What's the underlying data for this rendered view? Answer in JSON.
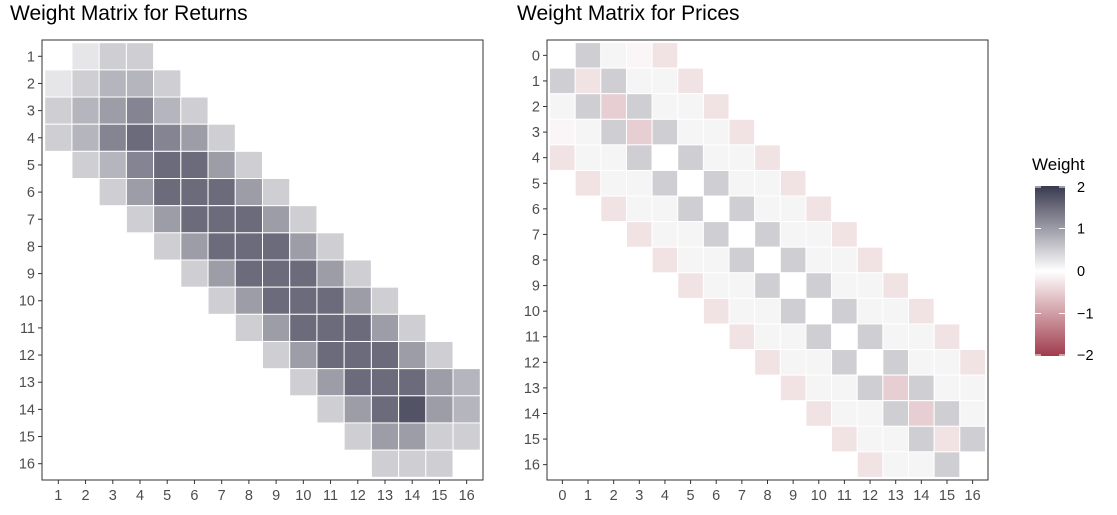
{
  "chart_data": [
    {
      "type": "heatmap",
      "title": "Weight Matrix for Returns",
      "xlabel": "",
      "ylabel": "",
      "x_categories": [
        "1",
        "2",
        "3",
        "4",
        "5",
        "6",
        "7",
        "8",
        "9",
        "10",
        "11",
        "12",
        "13",
        "14",
        "15",
        "16"
      ],
      "y_categories": [
        "1",
        "2",
        "3",
        "4",
        "5",
        "6",
        "7",
        "8",
        "9",
        "10",
        "11",
        "12",
        "13",
        "14",
        "15",
        "16"
      ],
      "values": [
        [
          null,
          0.25,
          0.5,
          0.5,
          null,
          null,
          null,
          null,
          null,
          null,
          null,
          null,
          null,
          null,
          null,
          null
        ],
        [
          0.25,
          0.5,
          0.75,
          0.75,
          0.5,
          null,
          null,
          null,
          null,
          null,
          null,
          null,
          null,
          null,
          null,
          null
        ],
        [
          0.5,
          0.75,
          1.0,
          1.25,
          0.75,
          0.5,
          null,
          null,
          null,
          null,
          null,
          null,
          null,
          null,
          null,
          null
        ],
        [
          0.5,
          0.75,
          1.25,
          1.5,
          1.25,
          1.0,
          0.5,
          null,
          null,
          null,
          null,
          null,
          null,
          null,
          null,
          null
        ],
        [
          null,
          0.5,
          0.75,
          1.25,
          1.5,
          1.5,
          1.0,
          0.5,
          null,
          null,
          null,
          null,
          null,
          null,
          null,
          null
        ],
        [
          null,
          null,
          0.5,
          1.0,
          1.5,
          1.5,
          1.5,
          1.0,
          0.5,
          null,
          null,
          null,
          null,
          null,
          null,
          null
        ],
        [
          null,
          null,
          null,
          0.5,
          1.0,
          1.5,
          1.5,
          1.5,
          1.0,
          0.5,
          null,
          null,
          null,
          null,
          null,
          null
        ],
        [
          null,
          null,
          null,
          null,
          0.5,
          1.0,
          1.5,
          1.5,
          1.5,
          1.0,
          0.5,
          null,
          null,
          null,
          null,
          null
        ],
        [
          null,
          null,
          null,
          null,
          null,
          0.5,
          1.0,
          1.5,
          1.5,
          1.5,
          1.0,
          0.5,
          null,
          null,
          null,
          null
        ],
        [
          null,
          null,
          null,
          null,
          null,
          null,
          0.5,
          1.0,
          1.5,
          1.5,
          1.5,
          1.0,
          0.5,
          null,
          null,
          null
        ],
        [
          null,
          null,
          null,
          null,
          null,
          null,
          null,
          0.5,
          1.0,
          1.5,
          1.5,
          1.5,
          1.0,
          0.5,
          null,
          null
        ],
        [
          null,
          null,
          null,
          null,
          null,
          null,
          null,
          null,
          0.5,
          1.0,
          1.5,
          1.5,
          1.5,
          1.0,
          0.5,
          null
        ],
        [
          null,
          null,
          null,
          null,
          null,
          null,
          null,
          null,
          null,
          0.5,
          1.0,
          1.5,
          1.5,
          1.5,
          1.0,
          0.75
        ],
        [
          null,
          null,
          null,
          null,
          null,
          null,
          null,
          null,
          null,
          null,
          0.5,
          1.0,
          1.5,
          1.75,
          1.0,
          0.75
        ],
        [
          null,
          null,
          null,
          null,
          null,
          null,
          null,
          null,
          null,
          null,
          null,
          0.5,
          1.0,
          1.0,
          0.5,
          0.5
        ],
        [
          null,
          null,
          null,
          null,
          null,
          null,
          null,
          null,
          null,
          null,
          null,
          null,
          0.5,
          0.5,
          0.5,
          null
        ]
      ]
    },
    {
      "type": "heatmap",
      "title": "Weight Matrix for Prices",
      "xlabel": "",
      "ylabel": "",
      "x_categories": [
        "0",
        "1",
        "2",
        "3",
        "4",
        "5",
        "6",
        "7",
        "8",
        "9",
        "10",
        "11",
        "12",
        "13",
        "14",
        "15",
        "16"
      ],
      "y_categories": [
        "0",
        "1",
        "2",
        "3",
        "4",
        "5",
        "6",
        "7",
        "8",
        "9",
        "10",
        "11",
        "12",
        "13",
        "14",
        "15",
        "16"
      ],
      "values": [
        [
          null,
          0.5,
          0.1,
          -0.1,
          -0.3,
          null,
          null,
          null,
          null,
          null,
          null,
          null,
          null,
          null,
          null,
          null,
          null
        ],
        [
          0.5,
          -0.3,
          0.5,
          0.1,
          0.1,
          -0.3,
          null,
          null,
          null,
          null,
          null,
          null,
          null,
          null,
          null,
          null,
          null
        ],
        [
          0.1,
          0.5,
          -0.5,
          0.5,
          0.1,
          0.1,
          -0.3,
          null,
          null,
          null,
          null,
          null,
          null,
          null,
          null,
          null,
          null
        ],
        [
          -0.1,
          0.1,
          0.5,
          -0.5,
          0.5,
          0.1,
          0.1,
          -0.3,
          null,
          null,
          null,
          null,
          null,
          null,
          null,
          null,
          null
        ],
        [
          -0.3,
          0.1,
          0.1,
          0.5,
          0,
          0.5,
          0.1,
          0.1,
          -0.3,
          null,
          null,
          null,
          null,
          null,
          null,
          null,
          null
        ],
        [
          null,
          -0.3,
          0.1,
          0.1,
          0.5,
          0,
          0.5,
          0.1,
          0.1,
          -0.3,
          null,
          null,
          null,
          null,
          null,
          null,
          null
        ],
        [
          null,
          null,
          -0.3,
          0.1,
          0.1,
          0.5,
          0,
          0.5,
          0.1,
          0.1,
          -0.3,
          null,
          null,
          null,
          null,
          null,
          null
        ],
        [
          null,
          null,
          null,
          -0.3,
          0.1,
          0.1,
          0.5,
          0,
          0.5,
          0.1,
          0.1,
          -0.3,
          null,
          null,
          null,
          null,
          null
        ],
        [
          null,
          null,
          null,
          null,
          -0.3,
          0.1,
          0.1,
          0.5,
          0,
          0.5,
          0.1,
          0.1,
          -0.3,
          null,
          null,
          null,
          null
        ],
        [
          null,
          null,
          null,
          null,
          null,
          -0.3,
          0.1,
          0.1,
          0.5,
          0,
          0.5,
          0.1,
          0.1,
          -0.3,
          null,
          null,
          null
        ],
        [
          null,
          null,
          null,
          null,
          null,
          null,
          -0.3,
          0.1,
          0.1,
          0.5,
          0,
          0.5,
          0.1,
          0.1,
          -0.3,
          null,
          null
        ],
        [
          null,
          null,
          null,
          null,
          null,
          null,
          null,
          -0.3,
          0.1,
          0.1,
          0.5,
          0,
          0.5,
          0.1,
          0.1,
          -0.3,
          null
        ],
        [
          null,
          null,
          null,
          null,
          null,
          null,
          null,
          null,
          -0.3,
          0.1,
          0.1,
          0.5,
          0,
          0.5,
          0.1,
          0.1,
          -0.3
        ],
        [
          null,
          null,
          null,
          null,
          null,
          null,
          null,
          null,
          null,
          -0.3,
          0.1,
          0.1,
          0.5,
          -0.5,
          0.5,
          0.1,
          0.1
        ],
        [
          null,
          null,
          null,
          null,
          null,
          null,
          null,
          null,
          null,
          null,
          -0.3,
          0.1,
          0.1,
          0.5,
          -0.5,
          0.5,
          0.1
        ],
        [
          null,
          null,
          null,
          null,
          null,
          null,
          null,
          null,
          null,
          null,
          null,
          -0.3,
          0.1,
          0.1,
          0.5,
          -0.3,
          0.5
        ],
        [
          null,
          null,
          null,
          null,
          null,
          null,
          null,
          null,
          null,
          null,
          null,
          null,
          -0.3,
          0.1,
          0.1,
          0.5,
          null
        ]
      ]
    }
  ],
  "legend": {
    "title": "Weight",
    "range": [
      -2,
      2
    ],
    "ticks": [
      "2",
      "1",
      "0",
      "−1",
      "−2"
    ],
    "tick_values": [
      2,
      1,
      0,
      -1,
      -2
    ],
    "placement": "right",
    "colors": {
      "low": "#a03c4c",
      "mid": "#ffffff",
      "high": "#3a3a50"
    }
  }
}
